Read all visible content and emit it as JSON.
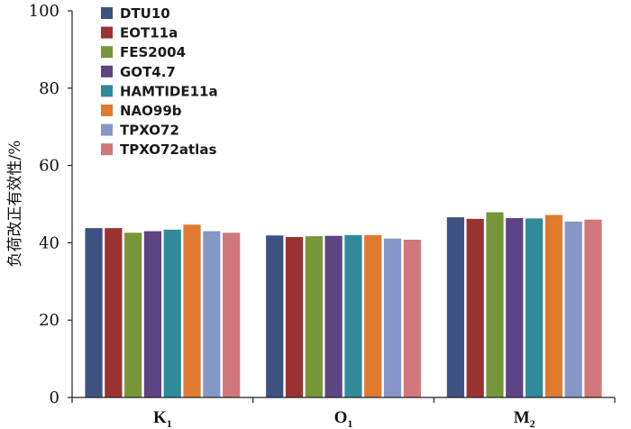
{
  "chart_data": {
    "type": "bar",
    "title": "",
    "xlabel": "",
    "ylabel": "负荷改正有效性/%",
    "ylim": [
      0,
      100
    ],
    "yticks": [
      0,
      20,
      40,
      60,
      80,
      100
    ],
    "grid": false,
    "legend_position": "top-left",
    "categories": [
      {
        "main": "K",
        "sub": "1"
      },
      {
        "main": "O",
        "sub": "1"
      },
      {
        "main": "M",
        "sub": "2"
      }
    ],
    "series": [
      {
        "name": "DTU10",
        "color": "#3e5282",
        "values": [
          43.8,
          41.9,
          46.6
        ]
      },
      {
        "name": "EOT11a",
        "color": "#9b3232",
        "values": [
          43.8,
          41.5,
          46.2
        ]
      },
      {
        "name": "FES2004",
        "color": "#76963a",
        "values": [
          42.6,
          41.7,
          47.9
        ]
      },
      {
        "name": "GOT4.7",
        "color": "#5d4482",
        "values": [
          43.0,
          41.8,
          46.4
        ]
      },
      {
        "name": "HAMTIDE11a",
        "color": "#2f8b9a",
        "values": [
          43.4,
          42.0,
          46.3
        ]
      },
      {
        "name": "NAO99b",
        "color": "#e07a30",
        "values": [
          44.7,
          42.0,
          47.2
        ]
      },
      {
        "name": "TPXO72",
        "color": "#8497c7",
        "values": [
          43.0,
          41.1,
          45.5
        ]
      },
      {
        "name": "TPXO72atlas",
        "color": "#d1767a",
        "values": [
          42.6,
          40.8,
          46.0
        ]
      }
    ]
  }
}
